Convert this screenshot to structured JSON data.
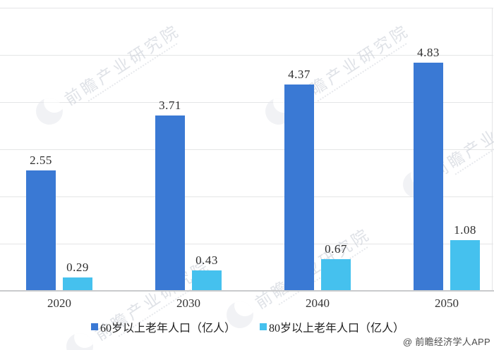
{
  "chart_data": {
    "type": "bar",
    "title": "",
    "categories": [
      "2020",
      "2030",
      "2040",
      "2050"
    ],
    "series": [
      {
        "name": "60岁以上老年人口（亿人）",
        "color": "#3a79d4",
        "values": [
          2.55,
          3.71,
          4.37,
          4.83
        ]
      },
      {
        "name": "80岁以上老年人口（亿人）",
        "color": "#45c1ee",
        "values": [
          0.29,
          0.43,
          0.67,
          1.08
        ]
      }
    ],
    "value_labels": [
      "2.55",
      "3.71",
      "4.37",
      "4.83",
      "0.29",
      "0.43",
      "0.67",
      "1.08"
    ],
    "xlabel": "",
    "ylabel": "",
    "ylim": [
      0,
      6
    ],
    "y_gridline_interval": 1,
    "grid": true,
    "y_axis_labels_visible": false,
    "legend_position": "bottom"
  },
  "watermark": {
    "text": "前瞻产业研究院"
  },
  "attribution": "@ 前瞻经济学人APP"
}
